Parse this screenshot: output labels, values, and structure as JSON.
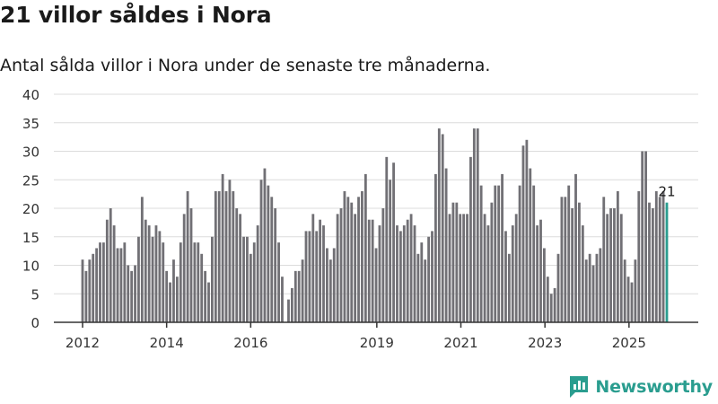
{
  "header": {
    "title": "21 villor såldes i Nora",
    "subtitle": "Antal sålda villor i Nora under de senaste tre månaderna."
  },
  "brand": {
    "name": "Newsworthy"
  },
  "colors": {
    "bar": "#717075",
    "highlight": "#2a9d8f",
    "grid": "#dcdcdc",
    "axis": "#333333"
  },
  "chart_data": {
    "type": "bar",
    "title": "21 villor såldes i Nora",
    "subtitle": "Antal sålda villor i Nora under de senaste tre månaderna.",
    "xlabel": "",
    "ylabel": "",
    "ylim": [
      0,
      40
    ],
    "yticks": [
      "0",
      "5",
      "10",
      "15",
      "20",
      "25",
      "30",
      "35",
      "40"
    ],
    "xticks": [
      {
        "label": "2012",
        "year": 2012
      },
      {
        "label": "2014",
        "year": 2014
      },
      {
        "label": "2016",
        "year": 2016
      },
      {
        "label": "2019",
        "year": 2019
      },
      {
        "label": "2021",
        "year": 2021
      },
      {
        "label": "2023",
        "year": 2023
      },
      {
        "label": "2025",
        "year": 2025
      }
    ],
    "start_year": 2012,
    "end_year": 2025.9,
    "segments": [
      {
        "start": 2012,
        "values": [
          11,
          9,
          11,
          12,
          13,
          14,
          14,
          18,
          20,
          17,
          13,
          13,
          14,
          10,
          9,
          10,
          15,
          22,
          18,
          17,
          15,
          17,
          16,
          14
        ]
      },
      {
        "start": 2014,
        "values": [
          9,
          7,
          11,
          8,
          14,
          19,
          23,
          20,
          14,
          14,
          12,
          9,
          7,
          15,
          23,
          23,
          26,
          23,
          25,
          23,
          20,
          19,
          15,
          15,
          12,
          14,
          17,
          25,
          27,
          24,
          22,
          20,
          14,
          8
        ]
      },
      {
        "start": 2016.9,
        "values": [
          4,
          6,
          9,
          9,
          11,
          16,
          16,
          19,
          16,
          18,
          17,
          13,
          11,
          13,
          19,
          20,
          23,
          22,
          21,
          19,
          22,
          23,
          26,
          18,
          18,
          13,
          17,
          20,
          29,
          25,
          28,
          17,
          16,
          17,
          18,
          19,
          17,
          12,
          14,
          11,
          15,
          16,
          26,
          34,
          33,
          27,
          19,
          21,
          21,
          19,
          19,
          19,
          29,
          34,
          34,
          24,
          19,
          17,
          21,
          24,
          24,
          26,
          16,
          12,
          17,
          19,
          24,
          31,
          32,
          27,
          24,
          17,
          18,
          13,
          8,
          5,
          6,
          12,
          22,
          22,
          24,
          20,
          26,
          21,
          17,
          11,
          12,
          10,
          12,
          13,
          22,
          19,
          20,
          20,
          23,
          19,
          11,
          8,
          7,
          11,
          23,
          30,
          30,
          21,
          20,
          23,
          22,
          23,
          21
        ]
      }
    ],
    "highlight": {
      "label": "21",
      "value": 21,
      "position": "last"
    }
  }
}
